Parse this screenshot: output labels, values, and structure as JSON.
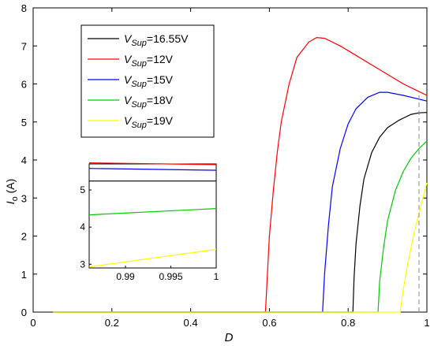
{
  "chart_data": {
    "type": "line",
    "xlabel": "D",
    "ylabel": "I",
    "ylabel_sub": "o",
    "ylabel_unit": " (A)",
    "xlim": [
      0,
      1
    ],
    "ylim": [
      0,
      8
    ],
    "xticks": [
      0,
      0.2,
      0.4,
      0.6,
      0.8,
      1
    ],
    "xtick_labels": [
      "0",
      "0.2",
      "0.4",
      "0.6",
      "0.8",
      "1"
    ],
    "yticks": [
      0,
      1,
      2,
      3,
      4,
      5,
      6,
      7,
      8
    ],
    "ytick_labels": [
      "0",
      "1",
      "2",
      "3",
      "4",
      "5",
      "6",
      "7",
      "8"
    ],
    "grid": false,
    "legend_position": "top-left",
    "series": [
      {
        "name": "V_Sup=16.55V",
        "legend_main": "V",
        "legend_sub": "Sup",
        "legend_tail": "=16.55V",
        "color": "#000000",
        "points": [
          [
            0.05,
            0
          ],
          [
            0.812,
            0
          ],
          [
            0.815,
            0.9
          ],
          [
            0.82,
            1.8
          ],
          [
            0.83,
            2.8
          ],
          [
            0.84,
            3.5
          ],
          [
            0.86,
            4.2
          ],
          [
            0.88,
            4.6
          ],
          [
            0.9,
            4.85
          ],
          [
            0.93,
            5.05
          ],
          [
            0.96,
            5.2
          ],
          [
            0.98,
            5.24
          ],
          [
            1.0,
            5.25
          ]
        ]
      },
      {
        "name": "V_Sup=12V",
        "legend_main": "V",
        "legend_sub": "Sup",
        "legend_tail": "=12V",
        "color": "#ff0000",
        "points": [
          [
            0.05,
            0
          ],
          [
            0.59,
            0
          ],
          [
            0.595,
            1.0
          ],
          [
            0.6,
            2.0
          ],
          [
            0.61,
            3.2
          ],
          [
            0.62,
            4.2
          ],
          [
            0.63,
            5.0
          ],
          [
            0.65,
            6.0
          ],
          [
            0.67,
            6.7
          ],
          [
            0.7,
            7.1
          ],
          [
            0.72,
            7.22
          ],
          [
            0.74,
            7.2
          ],
          [
            0.78,
            7.0
          ],
          [
            0.82,
            6.75
          ],
          [
            0.86,
            6.5
          ],
          [
            0.9,
            6.25
          ],
          [
            0.94,
            6.0
          ],
          [
            0.98,
            5.8
          ],
          [
            1.0,
            5.7
          ]
        ]
      },
      {
        "name": "V_Sup=15V",
        "legend_main": "V",
        "legend_sub": "Sup",
        "legend_tail": "=15V",
        "color": "#0000ff",
        "points": [
          [
            0.05,
            0
          ],
          [
            0.735,
            0
          ],
          [
            0.74,
            1.0
          ],
          [
            0.75,
            2.3
          ],
          [
            0.76,
            3.3
          ],
          [
            0.78,
            4.3
          ],
          [
            0.8,
            4.95
          ],
          [
            0.82,
            5.35
          ],
          [
            0.85,
            5.65
          ],
          [
            0.88,
            5.78
          ],
          [
            0.9,
            5.78
          ],
          [
            0.94,
            5.7
          ],
          [
            0.98,
            5.6
          ],
          [
            1.0,
            5.55
          ]
        ]
      },
      {
        "name": "V_Sup=18V",
        "legend_main": "V",
        "legend_sub": "Sup",
        "legend_tail": "=18V",
        "color": "#00cc00",
        "points": [
          [
            0.05,
            0
          ],
          [
            0.876,
            0
          ],
          [
            0.88,
            0.8
          ],
          [
            0.89,
            1.7
          ],
          [
            0.9,
            2.4
          ],
          [
            0.92,
            3.2
          ],
          [
            0.94,
            3.7
          ],
          [
            0.96,
            4.05
          ],
          [
            0.98,
            4.3
          ],
          [
            1.0,
            4.5
          ]
        ]
      },
      {
        "name": "V_Sup=19V",
        "legend_main": "V",
        "legend_sub": "Sup",
        "legend_tail": "=19V",
        "color": "#ffff00",
        "points": [
          [
            0.05,
            0
          ],
          [
            0.932,
            0
          ],
          [
            0.94,
            0.6
          ],
          [
            0.95,
            1.2
          ],
          [
            0.96,
            1.7
          ],
          [
            0.97,
            2.2
          ],
          [
            0.98,
            2.6
          ],
          [
            0.99,
            3.0
          ],
          [
            1.0,
            3.4
          ]
        ]
      }
    ],
    "marker_line": {
      "x": 0.98,
      "y_from": 0,
      "y_to": 5.7,
      "color": "#888888"
    },
    "inset": {
      "xlim": [
        0.986,
        1.0
      ],
      "ylim": [
        2.9,
        5.7
      ],
      "xticks": [
        0.99,
        0.995,
        1
      ],
      "xtick_labels": [
        "0.99",
        "0.995",
        "1"
      ],
      "yticks": [
        3,
        4,
        5
      ],
      "ytick_labels": [
        "3",
        "4",
        "5"
      ],
      "lines": [
        {
          "color": "#000000",
          "points": [
            [
              0.986,
              5.24
            ],
            [
              1.0,
              5.24
            ]
          ]
        },
        {
          "color": "#ff0000",
          "points": [
            [
              0.986,
              5.73
            ],
            [
              1.0,
              5.68
            ]
          ]
        },
        {
          "color": "#0000ff",
          "points": [
            [
              0.986,
              5.58
            ],
            [
              1.0,
              5.53
            ]
          ]
        },
        {
          "color": "#00cc00",
          "points": [
            [
              0.986,
              4.33
            ],
            [
              1.0,
              4.5
            ]
          ]
        },
        {
          "color": "#ffff00",
          "points": [
            [
              0.986,
              2.93
            ],
            [
              1.0,
              3.4
            ]
          ]
        }
      ]
    }
  }
}
